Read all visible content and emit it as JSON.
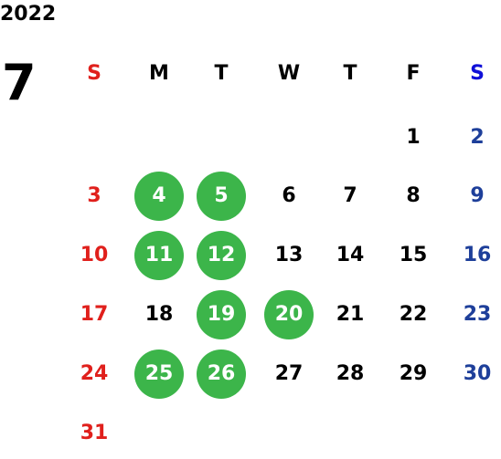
{
  "year": "2022",
  "month": "7",
  "weekdays": [
    "S",
    "M",
    "T",
    "W",
    "T",
    "F",
    "S"
  ],
  "weeks": [
    [
      null,
      null,
      null,
      null,
      null,
      {
        "day": 1
      },
      {
        "day": 2
      }
    ],
    [
      {
        "day": 3
      },
      {
        "day": 4,
        "marked": true
      },
      {
        "day": 5,
        "marked": true
      },
      {
        "day": 6
      },
      {
        "day": 7
      },
      {
        "day": 8
      },
      {
        "day": 9
      }
    ],
    [
      {
        "day": 10
      },
      {
        "day": 11,
        "marked": true
      },
      {
        "day": 12,
        "marked": true
      },
      {
        "day": 13
      },
      {
        "day": 14
      },
      {
        "day": 15
      },
      {
        "day": 16
      }
    ],
    [
      {
        "day": 17
      },
      {
        "day": 18
      },
      {
        "day": 19,
        "marked": true
      },
      {
        "day": 20,
        "marked": true
      },
      {
        "day": 21
      },
      {
        "day": 22
      },
      {
        "day": 23
      }
    ],
    [
      {
        "day": 24
      },
      {
        "day": 25,
        "marked": true
      },
      {
        "day": 26,
        "marked": true
      },
      {
        "day": 27
      },
      {
        "day": 28
      },
      {
        "day": 29
      },
      {
        "day": 30
      }
    ],
    [
      {
        "day": 31
      },
      null,
      null,
      null,
      null,
      null,
      null
    ]
  ]
}
